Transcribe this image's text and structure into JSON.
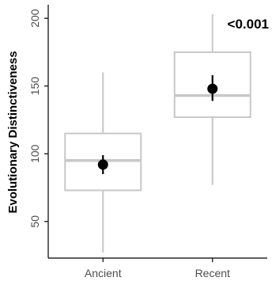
{
  "chart_data": {
    "type": "boxplot",
    "ylabel": "Evolutionary Distinctiveness",
    "xlabel": "",
    "categories": [
      "Ancient",
      "Recent"
    ],
    "ylim": [
      23,
      210
    ],
    "yticks": [
      50,
      100,
      150,
      200
    ],
    "grid": false,
    "boxes": [
      {
        "category": "Ancient",
        "whisker_low": 27,
        "q1": 73,
        "median": 95,
        "q3": 115,
        "whisker_high": 160,
        "mean": 92,
        "ci_low": 85,
        "ci_high": 99
      },
      {
        "category": "Recent",
        "whisker_low": 77,
        "q1": 127,
        "median": 143,
        "q3": 175,
        "whisker_high": 203,
        "mean": 148,
        "ci_low": 139,
        "ci_high": 158
      }
    ],
    "annotation": "<0.001",
    "colors": {
      "box": "#c8c8c8",
      "point": "#000000",
      "axis": "#000000",
      "text": "#4d4d4d"
    }
  }
}
